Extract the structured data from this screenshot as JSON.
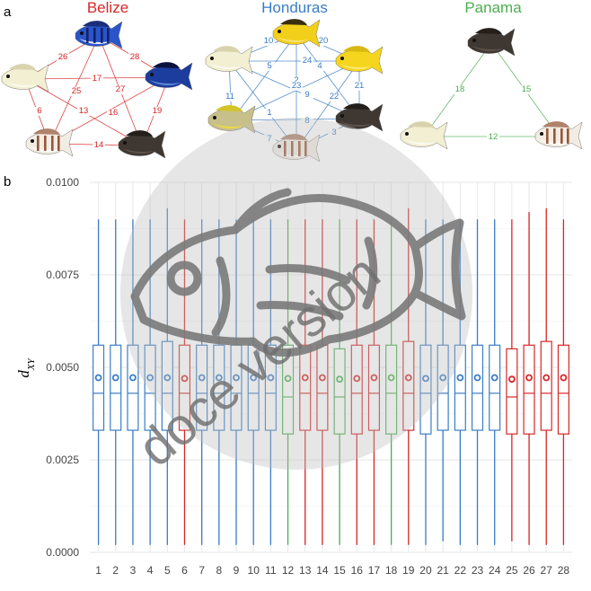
{
  "panels": {
    "a": "a",
    "b": "b"
  },
  "colors": {
    "belize": "#d62728",
    "honduras": "#3a7dc4",
    "panama": "#4caf50",
    "grid": "#ebebeb"
  },
  "networks": [
    {
      "title": "Belize",
      "color": "#d62728",
      "nodes": [
        {
          "id": "B1",
          "fish": "blue-striped"
        },
        {
          "id": "B2",
          "fish": "pale"
        },
        {
          "id": "B3",
          "fish": "blue-black"
        },
        {
          "id": "B4",
          "fish": "white-banded"
        },
        {
          "id": "B5",
          "fish": "dark"
        }
      ],
      "edges": [
        {
          "from": "B1",
          "to": "B2",
          "label": "26"
        },
        {
          "from": "B1",
          "to": "B3",
          "label": "28"
        },
        {
          "from": "B2",
          "to": "B3",
          "label": "17"
        },
        {
          "from": "B1",
          "to": "B4",
          "label": "25"
        },
        {
          "from": "B1",
          "to": "B5",
          "label": "27"
        },
        {
          "from": "B2",
          "to": "B4",
          "label": "6"
        },
        {
          "from": "B2",
          "to": "B5",
          "label": "13"
        },
        {
          "from": "B3",
          "to": "B4",
          "label": "16"
        },
        {
          "from": "B3",
          "to": "B5",
          "label": "19"
        },
        {
          "from": "B4",
          "to": "B5",
          "label": "14"
        }
      ]
    },
    {
      "title": "Honduras",
      "color": "#3a7dc4",
      "nodes": [
        {
          "id": "H1",
          "fish": "yellow-dark"
        },
        {
          "id": "H2",
          "fish": "pale"
        },
        {
          "id": "H3",
          "fish": "yellow"
        },
        {
          "id": "H4",
          "fish": "olive-yellow"
        },
        {
          "id": "H5",
          "fish": "dark"
        },
        {
          "id": "H6",
          "fish": "white-banded"
        }
      ],
      "edges": [
        {
          "from": "H1",
          "to": "H2",
          "label": "10"
        },
        {
          "from": "H1",
          "to": "H3",
          "label": "20"
        },
        {
          "from": "H2",
          "to": "H3",
          "label": "24"
        },
        {
          "from": "H1",
          "to": "H4",
          "label": "5"
        },
        {
          "from": "H1",
          "to": "H5",
          "label": "4"
        },
        {
          "from": "H1",
          "to": "H6",
          "label": "2"
        },
        {
          "from": "H2",
          "to": "H5",
          "label": "23"
        },
        {
          "from": "H3",
          "to": "H4",
          "label": "9"
        },
        {
          "from": "H2",
          "to": "H6",
          "label": "1"
        },
        {
          "from": "H3",
          "to": "H6",
          "label": "22"
        },
        {
          "from": "H2",
          "to": "H4",
          "label": "11"
        },
        {
          "from": "H3",
          "to": "H5",
          "label": "21"
        },
        {
          "from": "H4",
          "to": "H5",
          "label": "8"
        },
        {
          "from": "H4",
          "to": "H6",
          "label": "7"
        },
        {
          "from": "H5",
          "to": "H6",
          "label": "3"
        }
      ]
    },
    {
      "title": "Panama",
      "color": "#4caf50",
      "nodes": [
        {
          "id": "P1",
          "fish": "dark"
        },
        {
          "id": "P2",
          "fish": "pale"
        },
        {
          "id": "P3",
          "fish": "white-banded"
        }
      ],
      "edges": [
        {
          "from": "P1",
          "to": "P2",
          "label": "18"
        },
        {
          "from": "P1",
          "to": "P3",
          "label": "15"
        },
        {
          "from": "P2",
          "to": "P3",
          "label": "12"
        }
      ]
    }
  ],
  "chart_data": {
    "type": "boxplot",
    "ylabel": "d",
    "ylabel_sub": "XY",
    "ylim": [
      0,
      0.01
    ],
    "yticks": [
      "0.0000",
      "0.0025",
      "0.0050",
      "0.0075",
      "0.0100"
    ],
    "ytick_values": [
      0,
      0.0025,
      0.005,
      0.0075,
      0.01
    ],
    "grid": true,
    "categories": [
      "1",
      "2",
      "3",
      "4",
      "5",
      "6",
      "7",
      "8",
      "9",
      "10",
      "11",
      "12",
      "13",
      "14",
      "15",
      "16",
      "17",
      "18",
      "19",
      "20",
      "21",
      "22",
      "23",
      "24",
      "25",
      "26",
      "27",
      "28"
    ],
    "group_of_category": [
      "Honduras",
      "Honduras",
      "Honduras",
      "Honduras",
      "Honduras",
      "Belize",
      "Honduras",
      "Honduras",
      "Honduras",
      "Honduras",
      "Honduras",
      "Panama",
      "Belize",
      "Belize",
      "Panama",
      "Belize",
      "Belize",
      "Panama",
      "Belize",
      "Honduras",
      "Honduras",
      "Honduras",
      "Honduras",
      "Honduras",
      "Belize",
      "Belize",
      "Belize",
      "Belize"
    ],
    "boxes": [
      {
        "min": 0.0002,
        "q1": 0.0033,
        "median": 0.0043,
        "q3": 0.0056,
        "max": 0.009,
        "mean": 0.00472
      },
      {
        "min": 0.0002,
        "q1": 0.0033,
        "median": 0.0043,
        "q3": 0.0056,
        "max": 0.009,
        "mean": 0.00472
      },
      {
        "min": 0.0002,
        "q1": 0.0033,
        "median": 0.0043,
        "q3": 0.0056,
        "max": 0.009,
        "mean": 0.00472
      },
      {
        "min": 0.0002,
        "q1": 0.0033,
        "median": 0.0043,
        "q3": 0.0056,
        "max": 0.009,
        "mean": 0.00472
      },
      {
        "min": 0.0002,
        "q1": 0.0033,
        "median": 0.0043,
        "q3": 0.0057,
        "max": 0.0093,
        "mean": 0.00472
      },
      {
        "min": 0.0002,
        "q1": 0.0033,
        "median": 0.0043,
        "q3": 0.0056,
        "max": 0.009,
        "mean": 0.0047
      },
      {
        "min": 0.0002,
        "q1": 0.0033,
        "median": 0.0043,
        "q3": 0.0056,
        "max": 0.009,
        "mean": 0.00472
      },
      {
        "min": 0.0002,
        "q1": 0.0033,
        "median": 0.0043,
        "q3": 0.0056,
        "max": 0.009,
        "mean": 0.00472
      },
      {
        "min": 0.0002,
        "q1": 0.0033,
        "median": 0.0043,
        "q3": 0.0056,
        "max": 0.009,
        "mean": 0.00472
      },
      {
        "min": 0.0002,
        "q1": 0.0033,
        "median": 0.0043,
        "q3": 0.0056,
        "max": 0.009,
        "mean": 0.00472
      },
      {
        "min": 0.0002,
        "q1": 0.0033,
        "median": 0.0043,
        "q3": 0.0056,
        "max": 0.009,
        "mean": 0.00472
      },
      {
        "min": 0.0002,
        "q1": 0.0032,
        "median": 0.0042,
        "q3": 0.0056,
        "max": 0.009,
        "mean": 0.0047
      },
      {
        "min": 0.0002,
        "q1": 0.0033,
        "median": 0.0043,
        "q3": 0.0056,
        "max": 0.009,
        "mean": 0.00472
      },
      {
        "min": 0.0002,
        "q1": 0.0033,
        "median": 0.0043,
        "q3": 0.0056,
        "max": 0.009,
        "mean": 0.00472
      },
      {
        "min": 0.0002,
        "q1": 0.0032,
        "median": 0.0042,
        "q3": 0.0055,
        "max": 0.009,
        "mean": 0.00468
      },
      {
        "min": 0.0002,
        "q1": 0.0032,
        "median": 0.0043,
        "q3": 0.0056,
        "max": 0.009,
        "mean": 0.0047
      },
      {
        "min": 0.0002,
        "q1": 0.0033,
        "median": 0.0043,
        "q3": 0.0056,
        "max": 0.009,
        "mean": 0.00472
      },
      {
        "min": 0.0002,
        "q1": 0.0032,
        "median": 0.0043,
        "q3": 0.0056,
        "max": 0.009,
        "mean": 0.00472
      },
      {
        "min": 0.0002,
        "q1": 0.0033,
        "median": 0.0043,
        "q3": 0.0057,
        "max": 0.0093,
        "mean": 0.00472
      },
      {
        "min": 0.0002,
        "q1": 0.0032,
        "median": 0.0043,
        "q3": 0.0056,
        "max": 0.009,
        "mean": 0.0047
      },
      {
        "min": 0.0003,
        "q1": 0.0033,
        "median": 0.0043,
        "q3": 0.0056,
        "max": 0.009,
        "mean": 0.00472
      },
      {
        "min": 0.0002,
        "q1": 0.0033,
        "median": 0.0043,
        "q3": 0.0056,
        "max": 0.009,
        "mean": 0.00472
      },
      {
        "min": 0.0002,
        "q1": 0.0033,
        "median": 0.0043,
        "q3": 0.0056,
        "max": 0.009,
        "mean": 0.00472
      },
      {
        "min": 0.0002,
        "q1": 0.0033,
        "median": 0.0043,
        "q3": 0.0056,
        "max": 0.009,
        "mean": 0.00472
      },
      {
        "min": 0.0003,
        "q1": 0.0032,
        "median": 0.0042,
        "q3": 0.0055,
        "max": 0.009,
        "mean": 0.00468
      },
      {
        "min": 0.0002,
        "q1": 0.0032,
        "median": 0.0043,
        "q3": 0.0056,
        "max": 0.0092,
        "mean": 0.00472
      },
      {
        "min": 0.0002,
        "q1": 0.0033,
        "median": 0.0043,
        "q3": 0.0057,
        "max": 0.0093,
        "mean": 0.00472
      },
      {
        "min": 0.0002,
        "q1": 0.0032,
        "median": 0.0043,
        "q3": 0.0056,
        "max": 0.009,
        "mean": 0.00472
      }
    ]
  },
  "watermark": {
    "text": "doce version",
    "icon": "fish-outline-icon"
  }
}
